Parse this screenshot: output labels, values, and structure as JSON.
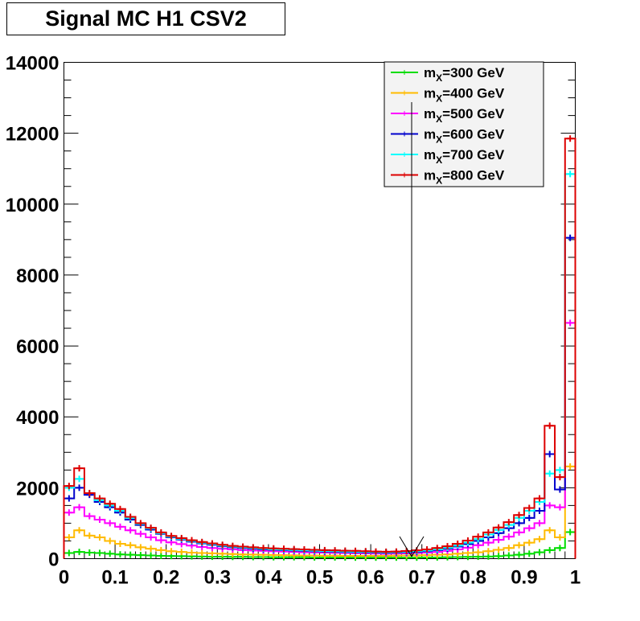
{
  "title": "Signal MC H1 CSV2",
  "chart_data": {
    "type": "line",
    "title": "Signal MC H1 CSV2",
    "xlim": [
      0,
      1
    ],
    "ylim": [
      0,
      14000
    ],
    "x_tick_labels": [
      "0",
      "0.1",
      "0.2",
      "0.3",
      "0.4",
      "0.5",
      "0.6",
      "0.7",
      "0.8",
      "0.9",
      "1"
    ],
    "y_tick_labels": [
      "0",
      "2000",
      "4000",
      "6000",
      "8000",
      "10000",
      "12000",
      "14000"
    ],
    "x_ticks": [
      0,
      0.1,
      0.2,
      0.3,
      0.4,
      0.5,
      0.6,
      0.7,
      0.8,
      0.9,
      1
    ],
    "y_ticks": [
      0,
      2000,
      4000,
      6000,
      8000,
      10000,
      12000,
      14000
    ],
    "bin_width": 0.02,
    "bin_lows": [
      0,
      0.02,
      0.04,
      0.06,
      0.08,
      0.1,
      0.12,
      0.14,
      0.16,
      0.18,
      0.2,
      0.22,
      0.24,
      0.26,
      0.28,
      0.3,
      0.32,
      0.34,
      0.36,
      0.38,
      0.4,
      0.42,
      0.44,
      0.46,
      0.48,
      0.5,
      0.52,
      0.54,
      0.56,
      0.58,
      0.6,
      0.62,
      0.64,
      0.66,
      0.68,
      0.7,
      0.72,
      0.74,
      0.76,
      0.78,
      0.8,
      0.82,
      0.84,
      0.86,
      0.88,
      0.9,
      0.92,
      0.94,
      0.96,
      0.98
    ],
    "legend_position": "top-right",
    "series": [
      {
        "name_prefix": "m",
        "name_sub": "X",
        "name_suffix": "=300 GeV",
        "color": "#00dd00",
        "values": [
          160,
          190,
          170,
          160,
          140,
          120,
          110,
          100,
          90,
          80,
          75,
          70,
          65,
          60,
          55,
          55,
          50,
          50,
          45,
          45,
          40,
          40,
          40,
          40,
          35,
          35,
          35,
          35,
          30,
          30,
          30,
          30,
          30,
          30,
          30,
          35,
          35,
          40,
          45,
          50,
          55,
          60,
          70,
          90,
          110,
          140,
          180,
          240,
          300,
          750
        ]
      },
      {
        "name_prefix": "m",
        "name_sub": "X",
        "name_suffix": "=400 GeV",
        "color": "#ffbb00",
        "values": [
          600,
          800,
          650,
          600,
          500,
          420,
          380,
          320,
          280,
          240,
          210,
          190,
          170,
          160,
          150,
          140,
          130,
          120,
          115,
          110,
          105,
          100,
          95,
          90,
          90,
          85,
          85,
          80,
          80,
          80,
          80,
          80,
          85,
          90,
          95,
          100,
          110,
          120,
          140,
          160,
          180,
          210,
          250,
          300,
          380,
          450,
          550,
          800,
          600,
          2600
        ]
      },
      {
        "name_prefix": "m",
        "name_sub": "X",
        "name_suffix": "=500 GeV",
        "color": "#ff00ff",
        "values": [
          1300,
          1450,
          1200,
          1100,
          1000,
          900,
          800,
          700,
          600,
          520,
          460,
          410,
          370,
          330,
          300,
          280,
          260,
          240,
          230,
          220,
          210,
          200,
          190,
          180,
          175,
          170,
          165,
          160,
          155,
          150,
          145,
          140,
          145,
          150,
          160,
          170,
          190,
          220,
          260,
          310,
          380,
          450,
          530,
          620,
          740,
          860,
          1000,
          1500,
          1450,
          6650
        ]
      },
      {
        "name_prefix": "m",
        "name_sub": "X",
        "name_suffix": "=600 GeV",
        "color": "#0000cc",
        "values": [
          1700,
          2000,
          1800,
          1600,
          1450,
          1300,
          1100,
          950,
          820,
          700,
          600,
          540,
          480,
          430,
          390,
          350,
          320,
          300,
          280,
          260,
          250,
          240,
          230,
          220,
          210,
          200,
          195,
          185,
          180,
          175,
          170,
          165,
          170,
          180,
          190,
          210,
          240,
          280,
          340,
          410,
          500,
          600,
          720,
          860,
          1000,
          1150,
          1350,
          2950,
          1950,
          9050
        ]
      },
      {
        "name_prefix": "m",
        "name_sub": "X",
        "name_suffix": "=700 GeV",
        "color": "#00ffff",
        "values": [
          2000,
          2250,
          1850,
          1650,
          1500,
          1350,
          1150,
          980,
          850,
          720,
          620,
          560,
          500,
          450,
          410,
          370,
          340,
          320,
          300,
          280,
          265,
          255,
          245,
          235,
          225,
          215,
          210,
          200,
          195,
          190,
          185,
          180,
          185,
          195,
          210,
          230,
          260,
          310,
          370,
          450,
          550,
          680,
          810,
          950,
          1150,
          1350,
          1600,
          2400,
          2500,
          10850
        ]
      },
      {
        "name_prefix": "m",
        "name_sub": "X",
        "name_suffix": "=800 GeV",
        "color": "#dd0000",
        "values": [
          2050,
          2550,
          1850,
          1700,
          1550,
          1400,
          1180,
          1000,
          870,
          740,
          640,
          580,
          520,
          470,
          430,
          390,
          360,
          340,
          320,
          300,
          290,
          280,
          270,
          260,
          250,
          240,
          235,
          225,
          220,
          210,
          200,
          195,
          200,
          215,
          235,
          260,
          300,
          350,
          420,
          510,
          620,
          740,
          880,
          1030,
          1230,
          1430,
          1700,
          3750,
          2300,
          11850
        ]
      }
    ]
  }
}
